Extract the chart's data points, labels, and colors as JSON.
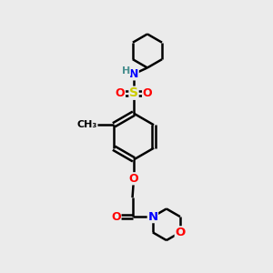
{
  "bg_color": "#ebebeb",
  "atom_colors": {
    "C": "#000000",
    "H": "#4a9090",
    "N": "#0000ff",
    "O": "#ff0000",
    "S": "#cccc00"
  },
  "bond_color": "#000000",
  "bond_lw": 1.8,
  "figsize": [
    3.0,
    3.0
  ],
  "dpi": 100
}
